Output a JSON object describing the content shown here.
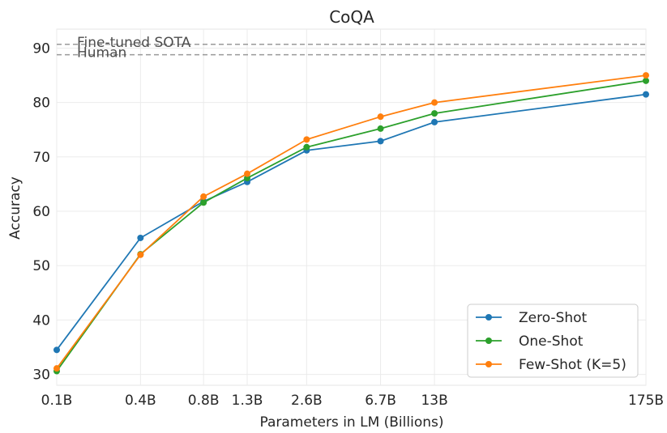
{
  "chart_data": {
    "type": "line",
    "title": "CoQA",
    "xlabel": "Parameters in LM (Billions)",
    "ylabel": "Accuracy",
    "categories": [
      "0.1B",
      "0.4B",
      "0.8B",
      "1.3B",
      "2.6B",
      "6.7B",
      "13B",
      "175B"
    ],
    "x": [
      0.125,
      0.35,
      0.76,
      1.3,
      2.7,
      6.7,
      13,
      175
    ],
    "x_scale": "log",
    "ylim": [
      28,
      93.5
    ],
    "yticks": [
      30,
      40,
      50,
      60,
      70,
      80,
      90
    ],
    "grid": true,
    "legend_position": "lower-right",
    "series": [
      {
        "name": "Zero-Shot",
        "color": "#1f77b4",
        "values": [
          34.5,
          55.1,
          61.8,
          65.4,
          71.2,
          72.9,
          76.4,
          81.5
        ]
      },
      {
        "name": "One-Shot",
        "color": "#2ca02c",
        "values": [
          30.6,
          52.1,
          61.6,
          66.1,
          71.8,
          75.2,
          78.0,
          84.0
        ]
      },
      {
        "name": "Few-Shot (K=5)",
        "color": "#ff7f0e",
        "values": [
          31.1,
          52.0,
          62.7,
          66.9,
          73.2,
          77.4,
          80.0,
          85.0
        ]
      }
    ],
    "reference_lines": [
      {
        "label": "Fine-tuned SOTA",
        "value": 90.7
      },
      {
        "label": "Human",
        "value": 88.8
      }
    ]
  }
}
